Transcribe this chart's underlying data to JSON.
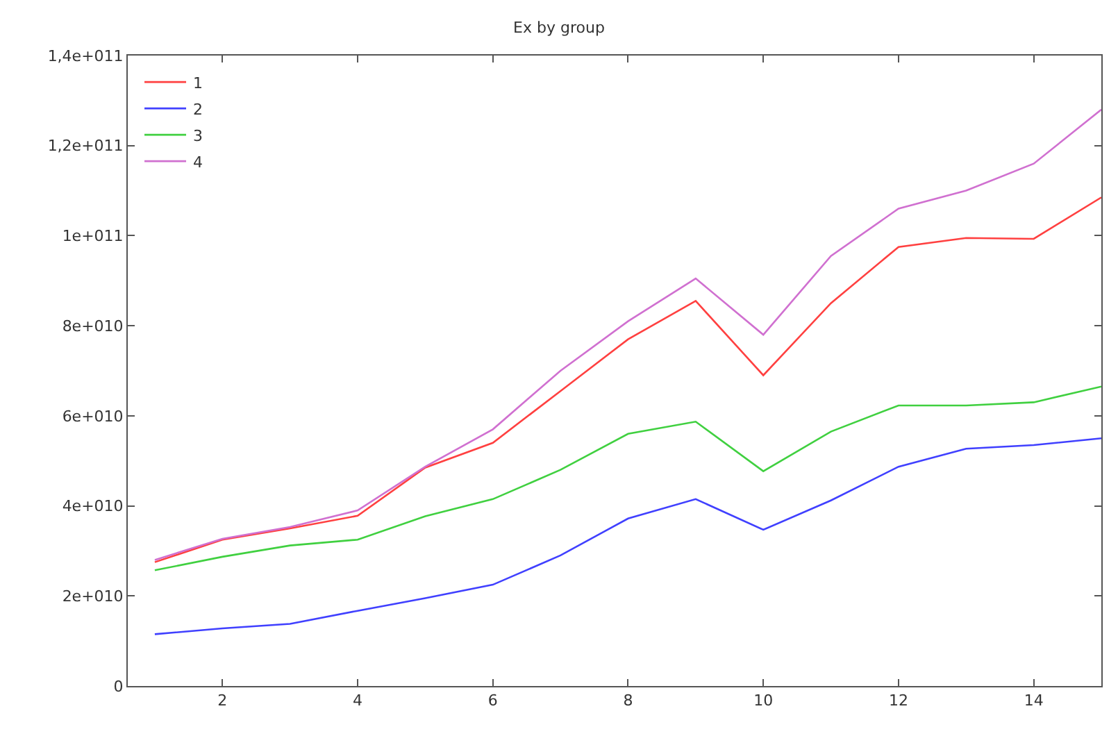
{
  "chart_data": {
    "type": "line",
    "title": "Ex by group",
    "x": [
      1,
      2,
      3,
      4,
      5,
      6,
      7,
      8,
      9,
      10,
      11,
      12,
      13,
      14,
      15
    ],
    "series": [
      {
        "name": "1",
        "color": "#ff4040",
        "values": [
          27500000000,
          32500000000,
          35000000000,
          37800000000,
          48500000000,
          54000000000,
          65500000000,
          77000000000,
          85500000000,
          69000000000,
          85000000000,
          97500000000,
          99500000000,
          99300000000,
          108500000000
        ]
      },
      {
        "name": "2",
        "color": "#4040ff",
        "values": [
          11500000000,
          12800000000,
          13800000000,
          16700000000,
          19500000000,
          22500000000,
          29000000000,
          37200000000,
          41500000000,
          34700000000,
          41200000000,
          48700000000,
          52700000000,
          53500000000,
          55000000000
        ]
      },
      {
        "name": "3",
        "color": "#40d040",
        "values": [
          25700000000,
          28700000000,
          31200000000,
          32500000000,
          37700000000,
          41500000000,
          48000000000,
          56000000000,
          58700000000,
          47700000000,
          56500000000,
          62300000000,
          62300000000,
          63000000000,
          66500000000
        ]
      },
      {
        "name": "4",
        "color": "#d070d0",
        "values": [
          28000000000,
          32700000000,
          35300000000,
          39000000000,
          48700000000,
          57000000000,
          70000000000,
          81000000000,
          90500000000,
          78000000000,
          95500000000,
          106000000000,
          110000000000,
          116000000000,
          128000000000
        ]
      }
    ],
    "xlim": [
      0.6,
      15
    ],
    "xticks": [
      2,
      4,
      6,
      8,
      10,
      12,
      14
    ],
    "ylim": [
      0,
      140000000000
    ],
    "yticks": [
      0,
      {
        "value": 20000000000,
        "label": "2e+010"
      },
      {
        "value": 40000000000,
        "label": "4e+010"
      },
      {
        "value": 60000000000,
        "label": "6e+010"
      },
      {
        "value": 80000000000,
        "label": "8e+010"
      },
      {
        "value": 100000000000,
        "label": "1e+011"
      },
      {
        "value": 120000000000,
        "label": "1,2e+011"
      },
      {
        "value": 140000000000,
        "label": "1,4e+011"
      }
    ],
    "grid": false,
    "legend": "top left",
    "marker": "none",
    "line_style": "solid"
  }
}
